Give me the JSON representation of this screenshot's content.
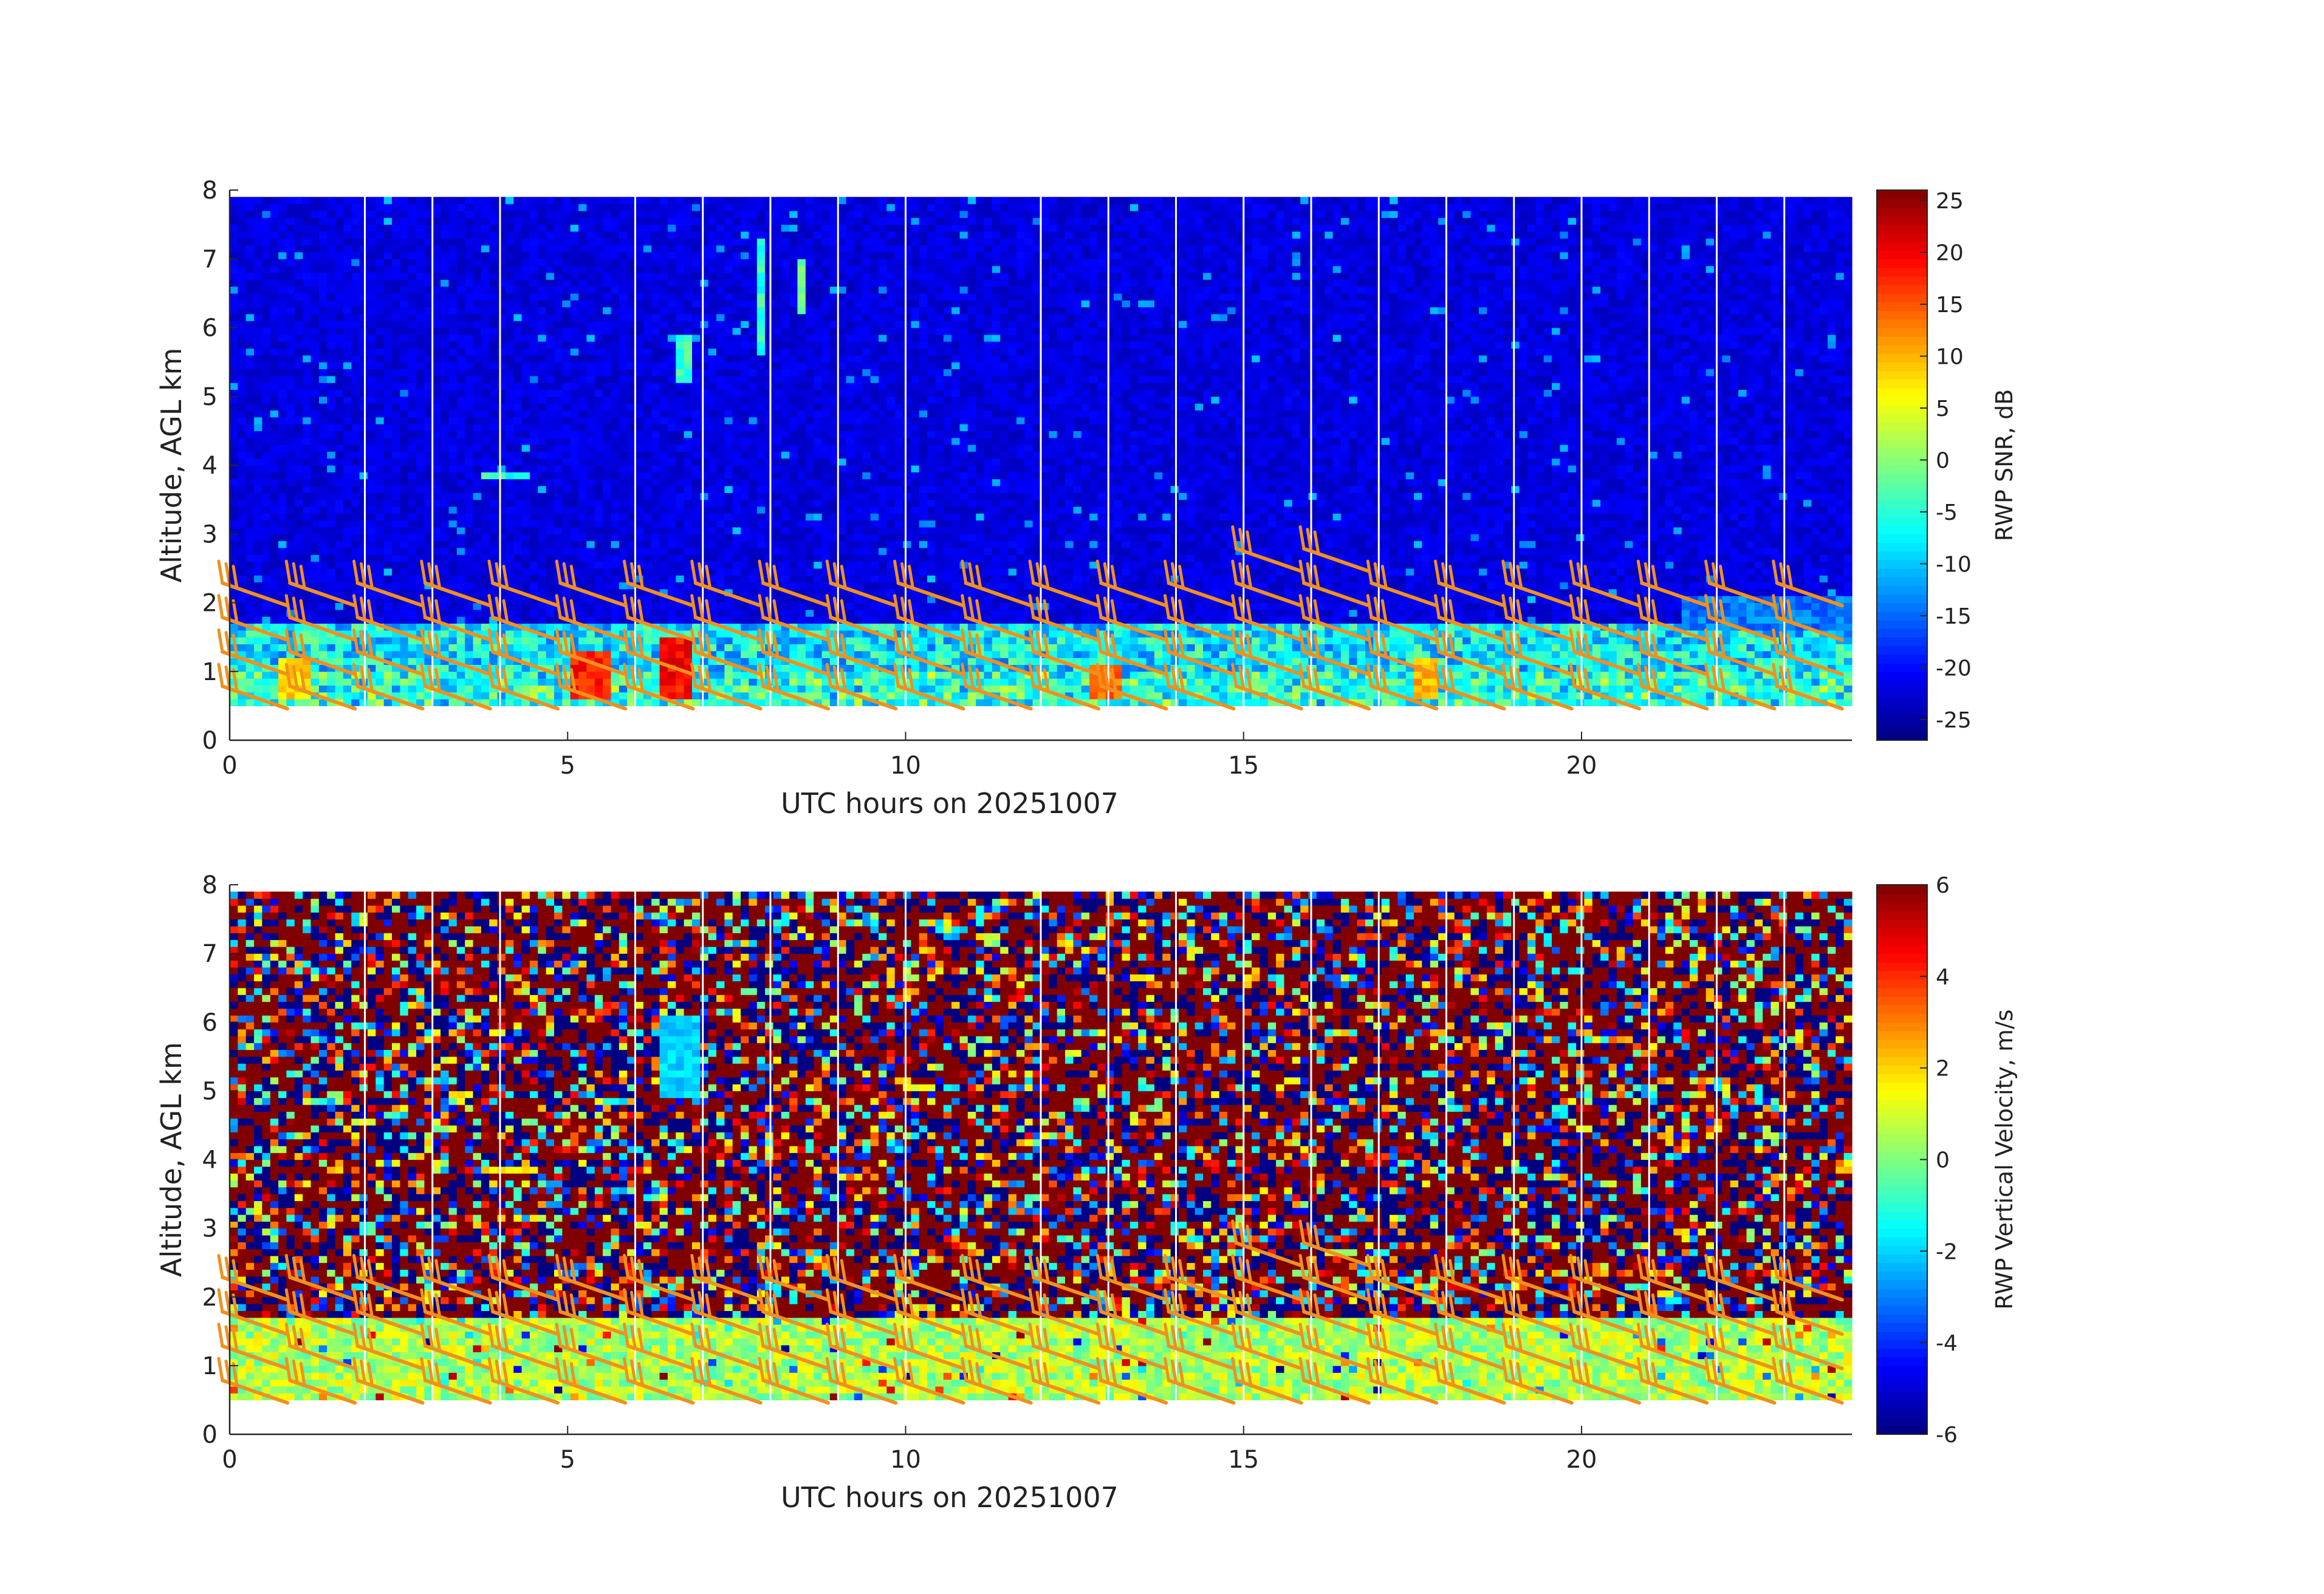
{
  "chart_data": [
    {
      "type": "heatmap",
      "xlabel": "UTC hours on 20251007",
      "ylabel": "Altitude, AGL km",
      "xlim": [
        0,
        24
      ],
      "ylim": [
        0,
        8
      ],
      "x_ticks": [
        0,
        5,
        10,
        15,
        20
      ],
      "y_ticks": [
        0,
        1,
        2,
        3,
        4,
        5,
        6,
        7,
        8
      ],
      "data_altitude_range_km": [
        0.5,
        7.9
      ],
      "colorbar": {
        "label": "RWP SNR, dB",
        "range": [
          -27,
          26
        ],
        "ticks": [
          -25,
          -20,
          -15,
          -10,
          -5,
          0,
          5,
          10,
          15,
          20,
          25
        ],
        "colormap": "jet"
      },
      "background_level": -22,
      "boundary_layer_top_km": 1.75,
      "boundary_layer_level": -8,
      "hourly_gap_times": [
        2,
        3,
        4,
        6,
        7,
        8,
        9,
        10,
        12,
        13,
        14,
        15,
        16,
        17,
        18,
        19,
        20,
        21,
        22,
        23
      ],
      "features": [
        {
          "x": [
            5.0,
            5.6
          ],
          "y": [
            0.6,
            1.3
          ],
          "level": 18
        },
        {
          "x": [
            6.4,
            6.9
          ],
          "y": [
            0.6,
            1.5
          ],
          "level": 19
        },
        {
          "x": [
            0.7,
            1.2
          ],
          "y": [
            0.6,
            1.2
          ],
          "level": 8
        },
        {
          "x": [
            12.7,
            13.2
          ],
          "y": [
            0.6,
            1.1
          ],
          "level": 14
        },
        {
          "x": [
            17.5,
            17.9
          ],
          "y": [
            0.6,
            1.2
          ],
          "level": 10
        },
        {
          "x": [
            7.8,
            7.9
          ],
          "y": [
            5.6,
            7.3
          ],
          "level": -5
        },
        {
          "x": [
            8.4,
            8.5
          ],
          "y": [
            6.2,
            7.0
          ],
          "level": -3
        },
        {
          "x": [
            6.6,
            6.8
          ],
          "y": [
            5.2,
            5.9
          ],
          "level": -4
        },
        {
          "x": [
            3.7,
            4.4
          ],
          "y": [
            3.78,
            3.95
          ],
          "level": -5
        },
        {
          "x": [
            21.5,
            24.0
          ],
          "y": [
            1.6,
            2.1
          ],
          "level": -14
        }
      ],
      "wind_barbs": {
        "color": "#f0901e",
        "times": [
          0,
          1,
          2,
          3,
          4,
          5,
          6,
          7,
          8,
          9,
          10,
          11,
          12,
          13,
          14,
          15,
          16,
          17,
          18,
          19,
          20,
          21,
          22,
          23
        ],
        "altitudes_km": [
          0.75,
          1.25,
          1.75,
          2.25
        ],
        "extra": [
          {
            "time": 15,
            "altitude_km": 2.75
          },
          {
            "time": 16,
            "altitude_km": 2.75
          }
        ]
      }
    },
    {
      "type": "heatmap",
      "xlabel": "UTC hours on 20251007",
      "ylabel": "Altitude, AGL km",
      "xlim": [
        0,
        24
      ],
      "ylim": [
        0,
        8
      ],
      "x_ticks": [
        0,
        5,
        10,
        15,
        20
      ],
      "y_ticks": [
        0,
        1,
        2,
        3,
        4,
        5,
        6,
        7,
        8
      ],
      "data_altitude_range_km": [
        0.5,
        7.9
      ],
      "colorbar": {
        "label": "RWP Vertical Velocity, m/s",
        "range": [
          -6,
          6
        ],
        "ticks": [
          -6,
          -4,
          -2,
          0,
          2,
          4,
          6
        ],
        "colormap": "jet"
      },
      "upper_noise": "random, saturated",
      "boundary_layer_top_km": 1.75,
      "boundary_layer_level": 0.6,
      "hourly_gap_times": [
        2,
        3,
        4,
        6,
        7,
        8,
        9,
        10,
        12,
        13,
        14,
        15,
        16,
        17,
        18,
        19,
        20,
        21,
        22,
        23
      ],
      "features": [
        {
          "x": [
            6.4,
            7.0
          ],
          "y": [
            4.9,
            6.1
          ],
          "level": -2.0
        },
        {
          "x": [
            3.7,
            4.4
          ],
          "y": [
            3.78,
            3.95
          ],
          "level": 1.8
        }
      ],
      "wind_barbs": {
        "color": "#f0901e",
        "times": [
          0,
          1,
          2,
          3,
          4,
          5,
          6,
          7,
          8,
          9,
          10,
          11,
          12,
          13,
          14,
          15,
          16,
          17,
          18,
          19,
          20,
          21,
          22,
          23
        ],
        "altitudes_km": [
          0.75,
          1.25,
          1.75,
          2.25
        ],
        "extra": [
          {
            "time": 15,
            "altitude_km": 2.75
          },
          {
            "time": 16,
            "altitude_km": 2.75
          }
        ]
      }
    }
  ]
}
